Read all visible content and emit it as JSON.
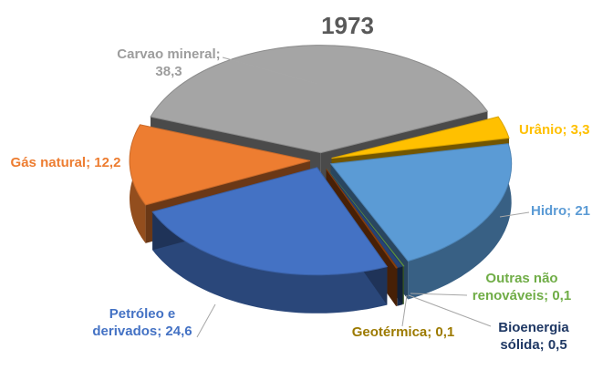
{
  "chart_data": {
    "type": "pie",
    "title": "1973",
    "slices": [
      {
        "name": "Carvao mineral",
        "value": 38.3,
        "label_lines": [
          "Carvao mineral;",
          "38,3"
        ],
        "color": "#a5a5a5",
        "label_color": "#9d9d9d"
      },
      {
        "name": "Urânio",
        "value": 3.3,
        "label_lines": [
          "Urânio; 3,3"
        ],
        "color": "#ffc000",
        "label_color": "#ffc000"
      },
      {
        "name": "Hidro",
        "value": 21,
        "label_lines": [
          "Hidro; 21"
        ],
        "color": "#5b9bd5",
        "label_color": "#5b9bd5"
      },
      {
        "name": "Outras não renováveis",
        "value": 0.1,
        "label_lines": [
          "Outras não",
          "renováveis; 0,1"
        ],
        "color": "#70ad47",
        "label_color": "#70ad47"
      },
      {
        "name": "Bioenergia sólida",
        "value": 0.5,
        "label_lines": [
          "Bioenergia",
          "sólida; 0,5"
        ],
        "color": "#264478",
        "label_color": "#1f3864"
      },
      {
        "name": "Geotérmica",
        "value": 0.1,
        "label_lines": [
          "Geotérmica; 0,1"
        ],
        "color": "#9e480e",
        "label_color": "#9c7a00"
      },
      {
        "name": "Petróleo e derivados",
        "value": 24.6,
        "label_lines": [
          "Petróleo e",
          "derivados; 24,6"
        ],
        "color": "#4472c4",
        "label_color": "#4472c4"
      },
      {
        "name": "Gás natural",
        "value": 12.2,
        "label_lines": [
          "Gás natural; 12,2"
        ],
        "color": "#ed7d31",
        "label_color": "#ed7d31"
      }
    ],
    "legend": "none",
    "style": "3d-exploded"
  }
}
